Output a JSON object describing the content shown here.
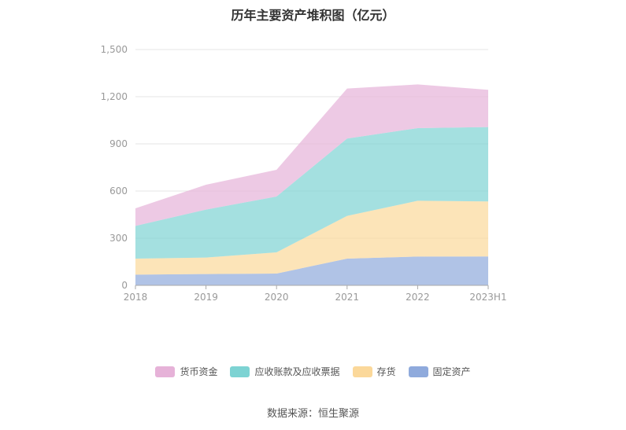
{
  "chart_data": {
    "type": "area",
    "title": "历年主要资产堆积图（亿元）",
    "categories": [
      "2018",
      "2019",
      "2020",
      "2021",
      "2022",
      "2023H1"
    ],
    "ylim": [
      0,
      1500
    ],
    "yticks": [
      "0",
      "300",
      "600",
      "900",
      "1,200",
      "1,500"
    ],
    "ytick_values": [
      0,
      300,
      600,
      900,
      1200,
      1500
    ],
    "stacked": true,
    "grid": true,
    "legend_position": "bottom",
    "series": [
      {
        "name": "固定资产",
        "color": "#8faadc",
        "values": [
          68,
          72,
          75,
          170,
          183,
          184
        ]
      },
      {
        "name": "存货",
        "color": "#fbd89a",
        "values": [
          102,
          105,
          135,
          272,
          355,
          350
        ]
      },
      {
        "name": "应收账款及应收票据",
        "color": "#7dd3d3",
        "values": [
          208,
          305,
          355,
          492,
          462,
          473
        ]
      },
      {
        "name": "货币资金",
        "color": "#e6b2d8",
        "values": [
          112,
          158,
          170,
          318,
          278,
          237
        ]
      }
    ],
    "legend_order": [
      "货币资金",
      "应收账款及应收票据",
      "存货",
      "固定资产"
    ],
    "source": "数据来源：恒生聚源"
  }
}
